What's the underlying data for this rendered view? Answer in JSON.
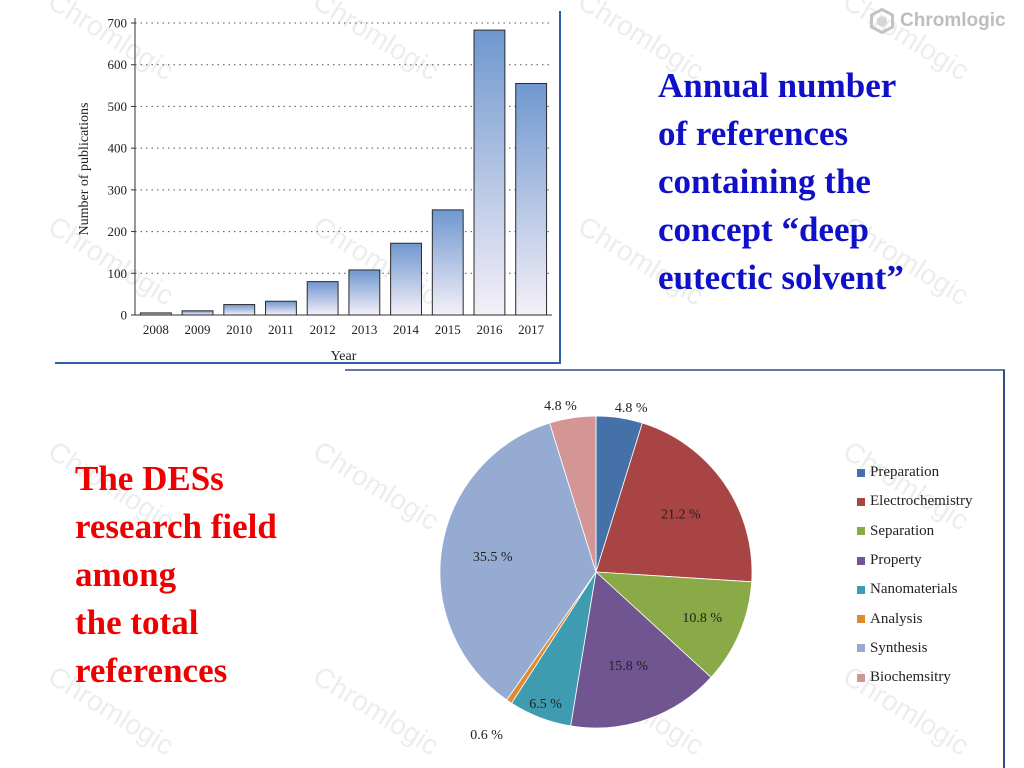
{
  "watermark_text": "Chromlogic",
  "logo": {
    "text": "Chromlogic",
    "icon": "hexagon-logo-icon",
    "color": "#bdbdbd"
  },
  "chart_data": [
    {
      "type": "bar",
      "categories": [
        "2008",
        "2009",
        "2010",
        "2011",
        "2012",
        "2013",
        "2014",
        "2015",
        "2016",
        "2017"
      ],
      "values": [
        5,
        10,
        25,
        33,
        80,
        108,
        172,
        252,
        683,
        555
      ],
      "title": "",
      "xlabel": "Year",
      "ylabel": "Number of publications",
      "ylim": [
        0,
        700
      ],
      "yticks": [
        0,
        100,
        200,
        300,
        400,
        500,
        600,
        700
      ],
      "grid": "horizontal dotted",
      "bar_fill_top": "#6f97cf",
      "bar_fill_bottom": "#f5f0f8",
      "frame_color": "#2e5fa8"
    },
    {
      "type": "pie",
      "start": "12 o'clock, clockwise",
      "slices": [
        {
          "label": "Preparation",
          "value": 4.8,
          "display": "4.8 %",
          "color": "#4472a8"
        },
        {
          "label": "Electrochemistry",
          "value": 21.2,
          "display": "21.2 %",
          "color": "#a84444"
        },
        {
          "label": "Separation",
          "value": 10.8,
          "display": "10.8 %",
          "color": "#8aaa48"
        },
        {
          "label": "Property",
          "value": 15.8,
          "display": "15.8 %",
          "color": "#705590"
        },
        {
          "label": "Nanomaterials",
          "value": 6.5,
          "display": "6.5 %",
          "color": "#3e9bb0"
        },
        {
          "label": "Analysis",
          "value": 0.6,
          "display": "0.6 %",
          "color": "#e08a32"
        },
        {
          "label": "Synthesis",
          "value": 35.5,
          "display": "35.5 %",
          "color": "#95abd2"
        },
        {
          "label": "Biochemsitry",
          "value": 4.8,
          "display": "4.8 %",
          "color": "#d49694"
        }
      ],
      "legend_position": "right",
      "frame_color": "#2e4b8a"
    }
  ],
  "headline_top": {
    "lines": [
      "Annual number",
      "of references",
      "containing the",
      "concept “deep",
      "eutectic solvent”"
    ],
    "color": "#1010c8"
  },
  "headline_bottom": {
    "lines": [
      "The DESs",
      "research field",
      "among",
      "the total",
      "references"
    ],
    "color": "#ee0000"
  }
}
